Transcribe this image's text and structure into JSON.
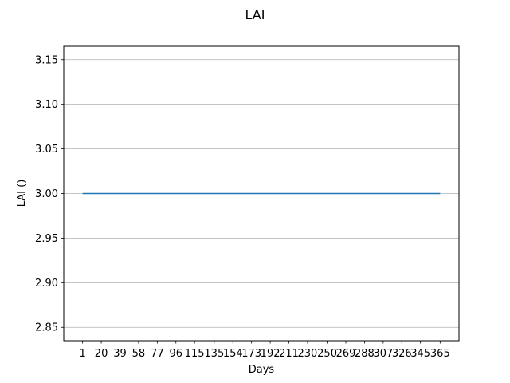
{
  "chart_data": {
    "type": "line",
    "title": "LAI",
    "xlabel": "Days",
    "ylabel": "LAI ()",
    "xlim": [
      -18.2,
      384.2
    ],
    "ylim": [
      2.835,
      3.165
    ],
    "x_ticks": [
      1,
      20,
      39,
      58,
      77,
      96,
      115,
      135,
      154,
      173,
      192,
      211,
      230,
      250,
      269,
      288,
      307,
      326,
      345,
      365
    ],
    "x_tick_labels": [
      "1",
      "20",
      "39",
      "58",
      "77",
      "96",
      "115",
      "135",
      "154",
      "173",
      "192",
      "211",
      "230",
      "250",
      "269",
      "288",
      "307",
      "326",
      "345",
      "365"
    ],
    "y_ticks": [
      2.85,
      2.9,
      2.95,
      3.0,
      3.05,
      3.1,
      3.15
    ],
    "y_tick_labels": [
      "2.85",
      "2.90",
      "2.95",
      "3.00",
      "3.05",
      "3.10",
      "3.15"
    ],
    "grid": "y-major",
    "series": [
      {
        "x": [
          1,
          365
        ],
        "values": [
          3.0,
          3.0
        ],
        "color": "#1f77b4"
      }
    ]
  }
}
